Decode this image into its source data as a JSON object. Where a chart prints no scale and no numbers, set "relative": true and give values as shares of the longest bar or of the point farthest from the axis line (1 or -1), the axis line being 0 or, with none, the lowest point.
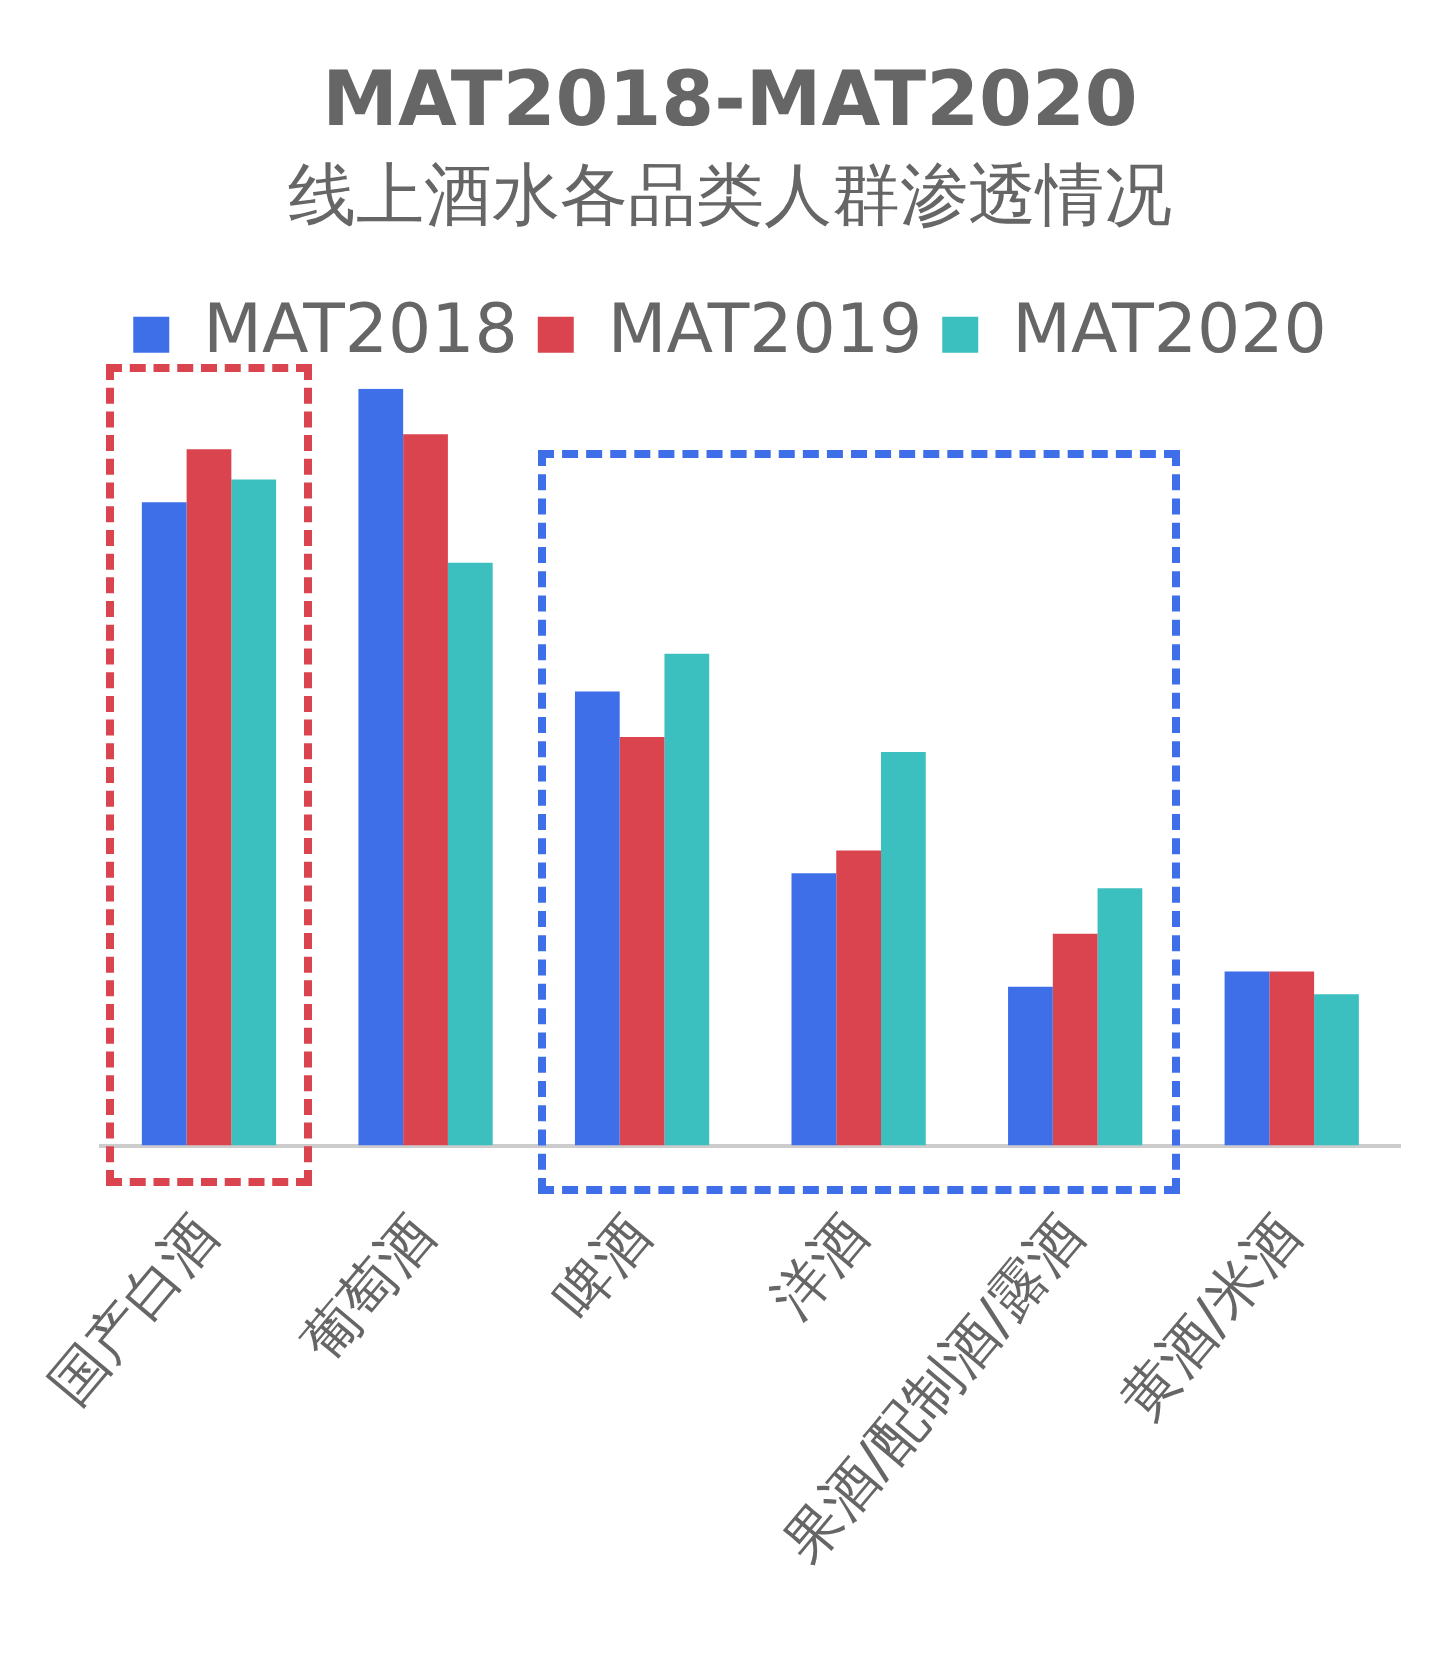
{
  "chart_data": {
    "type": "bar",
    "title": "MAT2018-MAT2020",
    "subtitle": "线上酒水各品类人群渗透情况",
    "relative": true,
    "legend": "top",
    "grid": false,
    "categories": [
      "国产白酒",
      "葡萄酒",
      "啤酒",
      "洋酒",
      "果酒/配制酒/露酒",
      "黄酒/米酒"
    ],
    "series": [
      {
        "name": "MAT2018",
        "color": "#3f6fe8",
        "values": [
          0.85,
          1,
          0.6,
          0.36,
          0.21,
          0.23
        ]
      },
      {
        "name": "MAT2019",
        "color": "#d9444f",
        "values": [
          0.92,
          0.94,
          0.54,
          0.39,
          0.28,
          0.23
        ]
      },
      {
        "name": "MAT2020",
        "color": "#3cbfbf",
        "values": [
          0.88,
          0.77,
          0.65,
          0.52,
          0.34,
          0.2
        ]
      }
    ]
  }
}
